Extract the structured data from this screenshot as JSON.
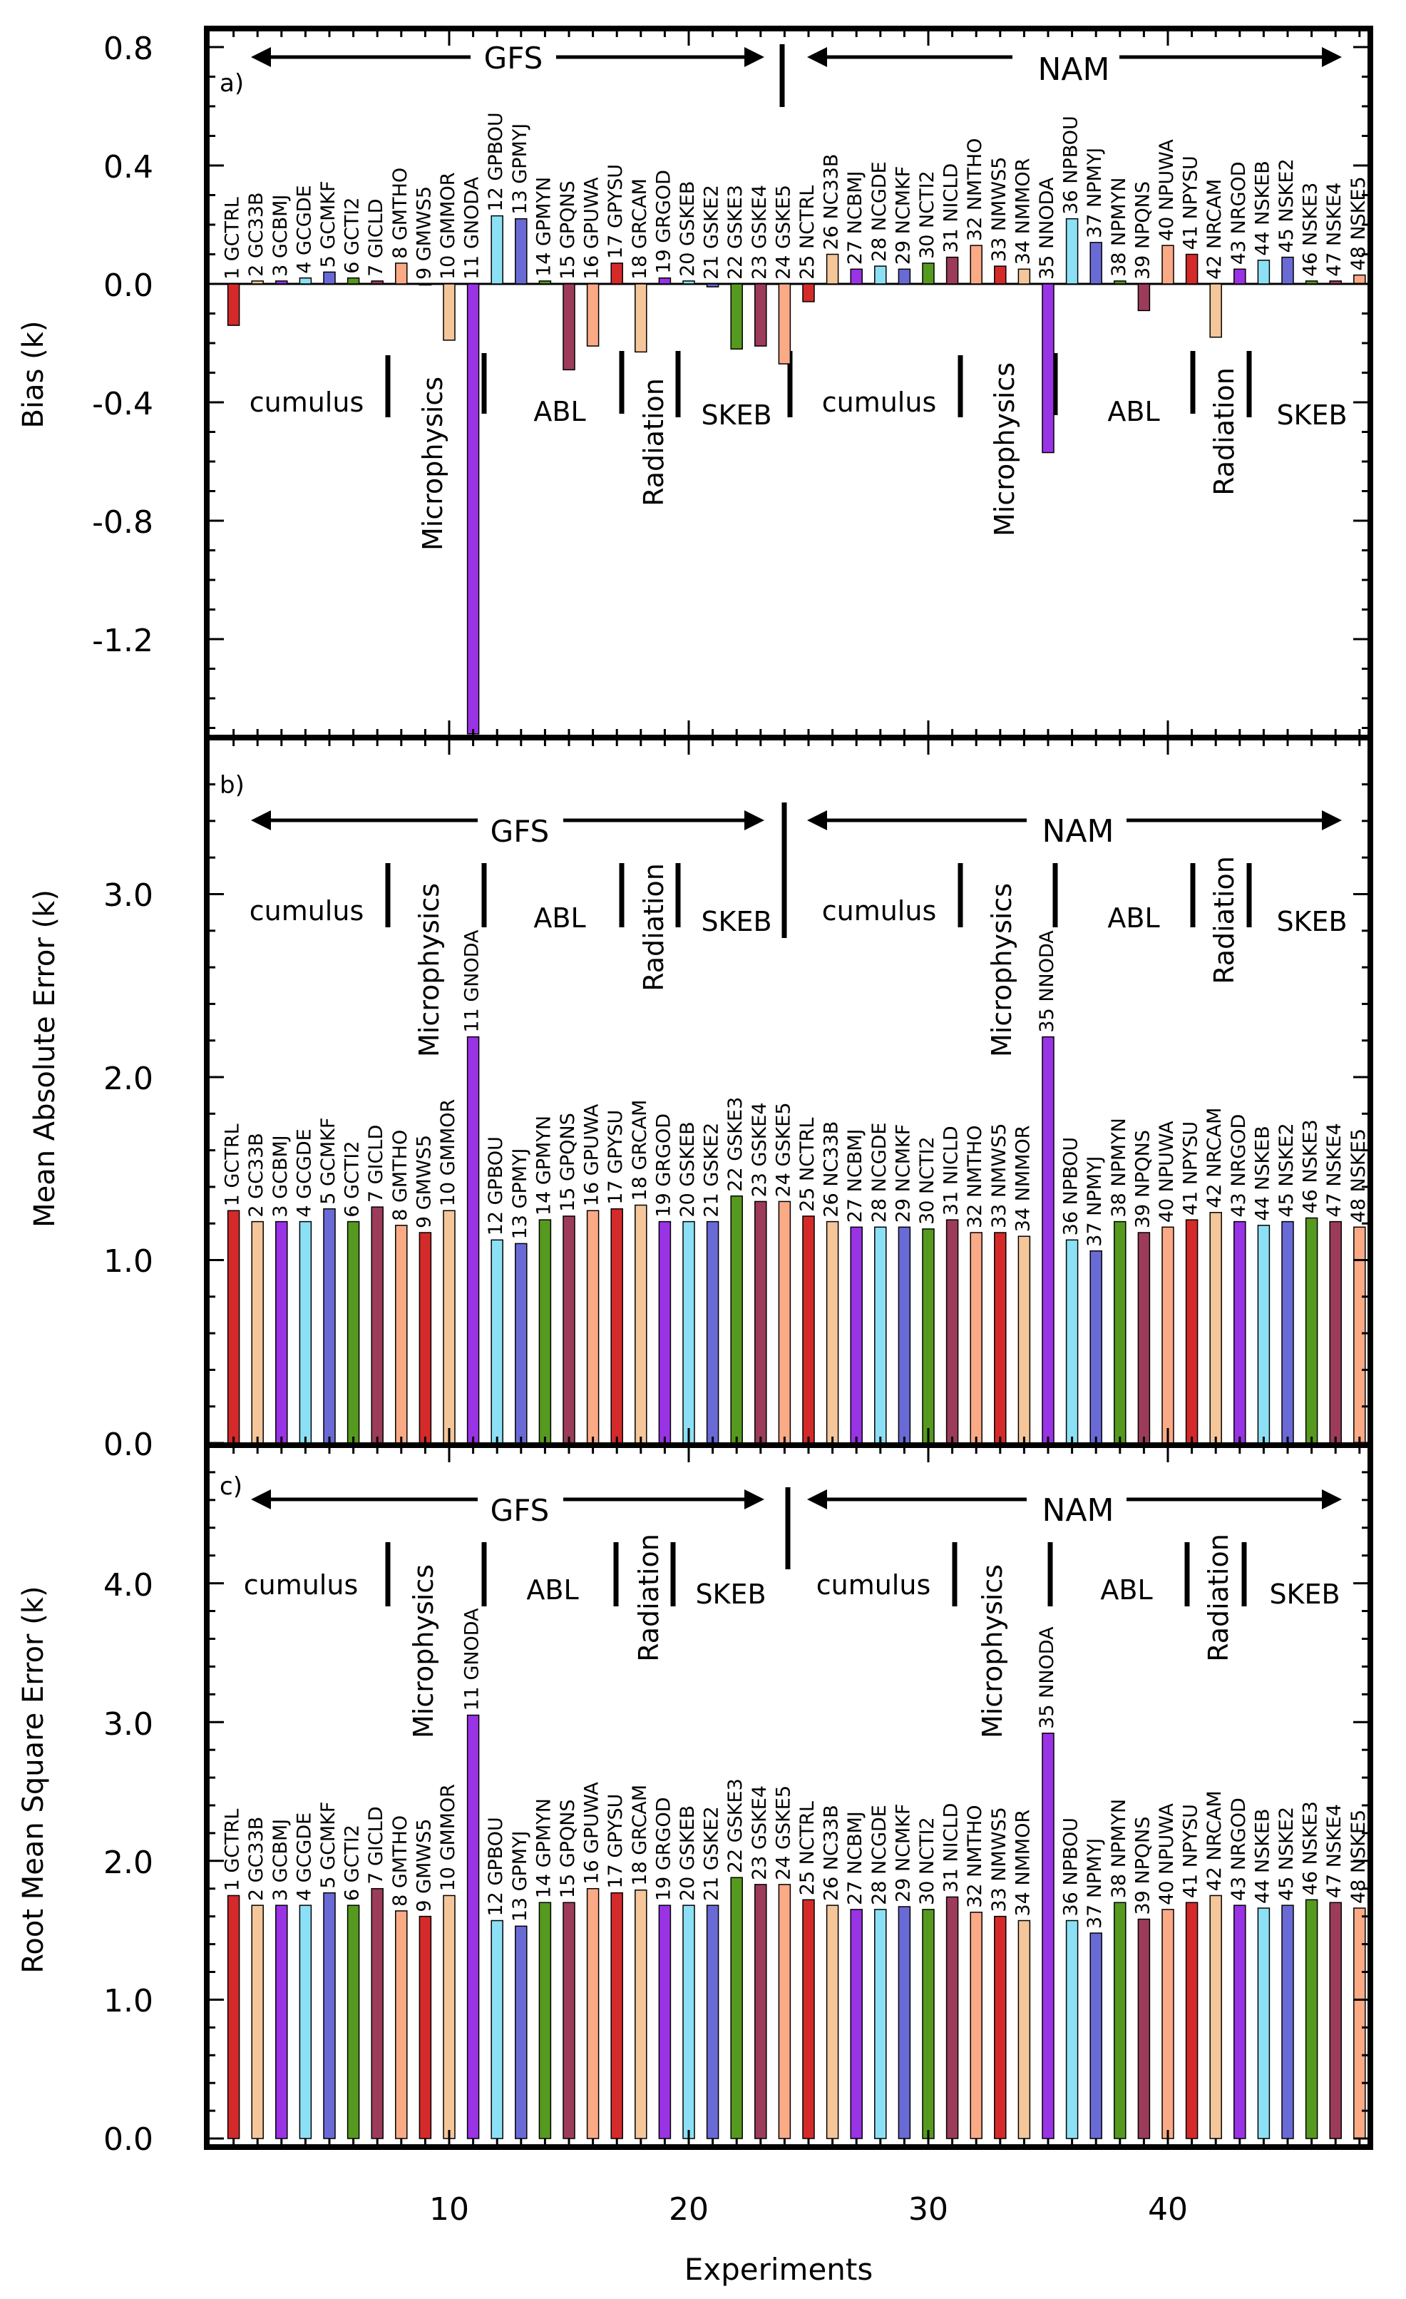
{
  "figure": {
    "xlabel": "Experiments",
    "xticks": [
      10,
      20,
      30,
      40
    ],
    "groups": {
      "gfs": "GFS",
      "nam": "NAM"
    },
    "schemes": {
      "cumulus": "cumulus",
      "microphysics": "Microphysics",
      "abl": "ABL",
      "radiation": "Radiation",
      "skeb": "SKEB"
    },
    "colors": {
      "red": "#d42a2a",
      "peach": "#f5c69a",
      "purple": "#9a32e6",
      "cyan": "#8ce0f5",
      "blue": "#6a6ad6",
      "green": "#559a1e",
      "maroon": "#9c3c5a",
      "salmon": "#fbaa86"
    }
  },
  "chart_data": [
    {
      "type": "bar",
      "panel_label": "a)",
      "ylabel": "Bias (k)",
      "ylim": [
        -1.5,
        0.8
      ],
      "yticks": [
        "0.8",
        "0.4",
        "0.0",
        "-0.4",
        "-0.8",
        "-1.2"
      ],
      "categories": [
        "1 GCTRL",
        "2 GC33B",
        "3 GCBMJ",
        "4 GCGDE",
        "5 GCMKF",
        "6 GCTI2",
        "7 GICLD",
        "8 GMTHO",
        "9 GMWS5",
        "10 GMMOR",
        "11 GNODA",
        "12 GPBOU",
        "13 GPMYJ",
        "14 GPMYN",
        "15 GPQNS",
        "16 GPUWA",
        "17 GPYSU",
        "18 GRCAM",
        "19 GRGOD",
        "20 GSKEB",
        "21 GSKE2",
        "22 GSKE3",
        "23 GSKE4",
        "24 GSKE5",
        "25 NCTRL",
        "26 NC33B",
        "27 NCBMJ",
        "28 NCGDE",
        "29 NCMKF",
        "30 NCTI2",
        "31 NICLD",
        "32 NMTHO",
        "33 NMWS5",
        "34 NMMOR",
        "35 NNODA",
        "36 NPBOU",
        "37 NPMYJ",
        "38 NPMYN",
        "39 NPQNS",
        "40 NPUWA",
        "41 NPYSU",
        "42 NRCAM",
        "43 NRGOD",
        "44 NSKEB",
        "45 NSKE2",
        "46 NSKE3",
        "47 NSKE4",
        "48 NSKE5"
      ],
      "values": [
        -0.14,
        0.01,
        0.01,
        0.02,
        0.04,
        0.02,
        0.01,
        0.07,
        0.0,
        -0.19,
        -1.52,
        0.23,
        0.22,
        0.01,
        -0.29,
        -0.21,
        0.07,
        -0.23,
        0.02,
        0.01,
        -0.01,
        -0.22,
        -0.21,
        -0.27,
        -0.06,
        0.1,
        0.05,
        0.06,
        0.05,
        0.07,
        0.09,
        0.13,
        0.06,
        0.05,
        -0.57,
        0.22,
        0.14,
        0.01,
        -0.09,
        0.13,
        0.1,
        -0.18,
        0.05,
        0.08,
        0.09,
        0.01,
        0.01,
        0.03
      ]
    },
    {
      "type": "bar",
      "panel_label": "b)",
      "ylabel": "Mean Absolute Error (k)",
      "ylim": [
        0,
        3.6
      ],
      "yticks": [
        "0.0",
        "1.0",
        "2.0",
        "3.0"
      ],
      "categories": [
        "1 GCTRL",
        "2 GC33B",
        "3 GCBMJ",
        "4 GCGDE",
        "5 GCMKF",
        "6 GCTI2",
        "7 GICLD",
        "8 GMTHO",
        "9 GMWS5",
        "10 GMMOR",
        "11 GNODA",
        "12 GPBOU",
        "13 GPMYJ",
        "14 GPMYN",
        "15 GPQNS",
        "16 GPUWA",
        "17 GPYSU",
        "18 GRCAM",
        "19 GRGOD",
        "20 GSKEB",
        "21 GSKE2",
        "22 GSKE3",
        "23 GSKE4",
        "24 GSKE5",
        "25 NCTRL",
        "26 NC33B",
        "27 NCBMJ",
        "28 NCGDE",
        "29 NCMKF",
        "30 NCTI2",
        "31 NICLD",
        "32 NMTHO",
        "33 NMWS5",
        "34 NMMOR",
        "35 NNODA",
        "36 NPBOU",
        "37 NPMYJ",
        "38 NPMYN",
        "39 NPQNS",
        "40 NPUWA",
        "41 NPYSU",
        "42 NRCAM",
        "43 NRGOD",
        "44 NSKEB",
        "45 NSKE2",
        "46 NSKE3",
        "47 NSKE4",
        "48 NSKE5"
      ],
      "values": [
        1.27,
        1.21,
        1.21,
        1.21,
        1.28,
        1.21,
        1.29,
        1.19,
        1.15,
        1.27,
        2.22,
        1.11,
        1.09,
        1.22,
        1.24,
        1.27,
        1.28,
        1.3,
        1.21,
        1.21,
        1.21,
        1.35,
        1.32,
        1.32,
        1.24,
        1.21,
        1.18,
        1.18,
        1.18,
        1.17,
        1.22,
        1.15,
        1.15,
        1.13,
        2.22,
        1.11,
        1.05,
        1.21,
        1.15,
        1.18,
        1.22,
        1.26,
        1.21,
        1.19,
        1.21,
        1.23,
        1.21,
        1.18
      ]
    },
    {
      "type": "bar",
      "panel_label": "c)",
      "ylabel": "Root Mean Square Error (k)",
      "ylim": [
        0,
        4.8
      ],
      "yticks": [
        "0.0",
        "1.0",
        "2.0",
        "3.0",
        "4.0"
      ],
      "categories": [
        "1 GCTRL",
        "2 GC33B",
        "3 GCBMJ",
        "4 GCGDE",
        "5 GCMKF",
        "6 GCTI2",
        "7 GICLD",
        "8 GMTHO",
        "9 GMWS5",
        "10 GMMOR",
        "11 GNODA",
        "12 GPBOU",
        "13 GPMYJ",
        "14 GPMYN",
        "15 GPQNS",
        "16 GPUWA",
        "17 GPYSU",
        "18 GRCAM",
        "19 GRGOD",
        "20 GSKEB",
        "21 GSKE2",
        "22 GSKE3",
        "23 GSKE4",
        "24 GSKE5",
        "25 NCTRL",
        "26 NC33B",
        "27 NCBMJ",
        "28 NCGDE",
        "29 NCMKF",
        "30 NCTI2",
        "31 NICLD",
        "32 NMTHO",
        "33 NMWS5",
        "34 NMMOR",
        "35 NNODA",
        "36 NPBOU",
        "37 NPMYJ",
        "38 NPMYN",
        "39 NPQNS",
        "40 NPUWA",
        "41 NPYSU",
        "42 NRCAM",
        "43 NRGOD",
        "44 NSKEB",
        "45 NSKE2",
        "46 NSKE3",
        "47 NSKE4",
        "48 NSKE5"
      ],
      "values": [
        1.75,
        1.68,
        1.68,
        1.68,
        1.77,
        1.68,
        1.8,
        1.64,
        1.6,
        1.75,
        3.05,
        1.57,
        1.53,
        1.7,
        1.7,
        1.8,
        1.77,
        1.79,
        1.68,
        1.68,
        1.68,
        1.88,
        1.83,
        1.83,
        1.72,
        1.68,
        1.65,
        1.65,
        1.67,
        1.65,
        1.74,
        1.63,
        1.6,
        1.57,
        2.92,
        1.57,
        1.48,
        1.7,
        1.58,
        1.65,
        1.7,
        1.75,
        1.68,
        1.66,
        1.68,
        1.72,
        1.7,
        1.66
      ]
    }
  ]
}
